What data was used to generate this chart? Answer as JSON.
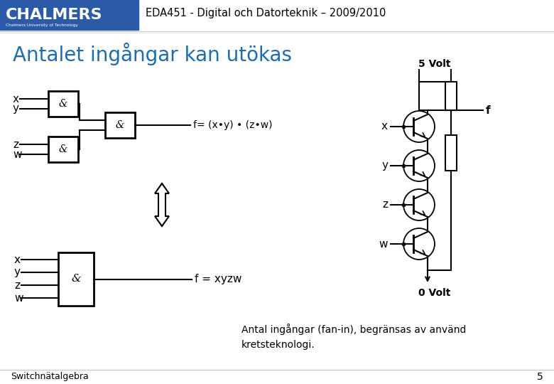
{
  "bg_color": "#ffffff",
  "header_bg": "#2B5BA8",
  "header_text": "CHALMERS",
  "header_sub": "Chalmers University of Technology",
  "course_title": "EDA451 - Digital och Datorteknik – 2009/2010",
  "slide_title": "Antalet ingångar kan utökas",
  "slide_title_color": "#1B6CB5",
  "header_line_color": "#cccccc",
  "footer_text": "Switchnätalgebra",
  "footer_page": "5",
  "formula_top": "f= (x•y) • (z•w)",
  "formula_bottom": "f = xyzw",
  "label_5volt": "5 Volt",
  "label_0volt": "0 Volt",
  "label_f": "f",
  "transistor_text": "Antal ingångar (fan-in), begränsas av använd\nkretsteknologi.",
  "arrow_color": "#000000",
  "box_color": "#000000",
  "text_color": "#000000"
}
